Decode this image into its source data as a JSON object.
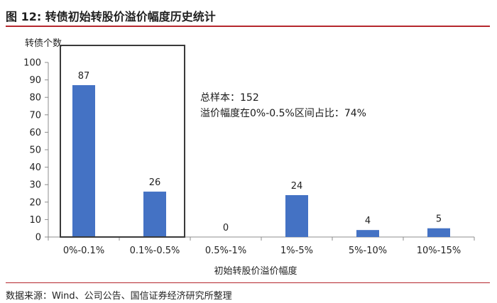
{
  "header": {
    "figure_title": "图 12:  转债初始转股价溢价幅度历史统计"
  },
  "chart_data": {
    "type": "bar",
    "categories": [
      "0%-0.1%",
      "0.1%-0.5%",
      "0.5%-1%",
      "1%-5%",
      "5%-10%",
      "10%-15%"
    ],
    "values": [
      87,
      26,
      0,
      24,
      4,
      5
    ],
    "data_labels": [
      "87",
      "26",
      "0",
      "24",
      "4",
      "5"
    ],
    "ylabel": "转债个数",
    "xlabel": "初始转股价溢价幅度",
    "ylim": [
      0,
      100
    ],
    "yticks": [
      "0",
      "10",
      "20",
      "30",
      "40",
      "50",
      "60",
      "70",
      "80",
      "90",
      "100"
    ],
    "grid": false,
    "bar_color": "#4472c4",
    "highlight_box": {
      "categories": [
        "0%-0.1%",
        "0.1%-0.5%"
      ],
      "color": "#3a3a3a"
    },
    "annotations": [
      "总样本：152",
      "溢价幅度在0%-0.5%区间占比：74%"
    ]
  },
  "footer": {
    "source": "数据来源：Wind、公司公告、国信证券经济研究所整理"
  }
}
